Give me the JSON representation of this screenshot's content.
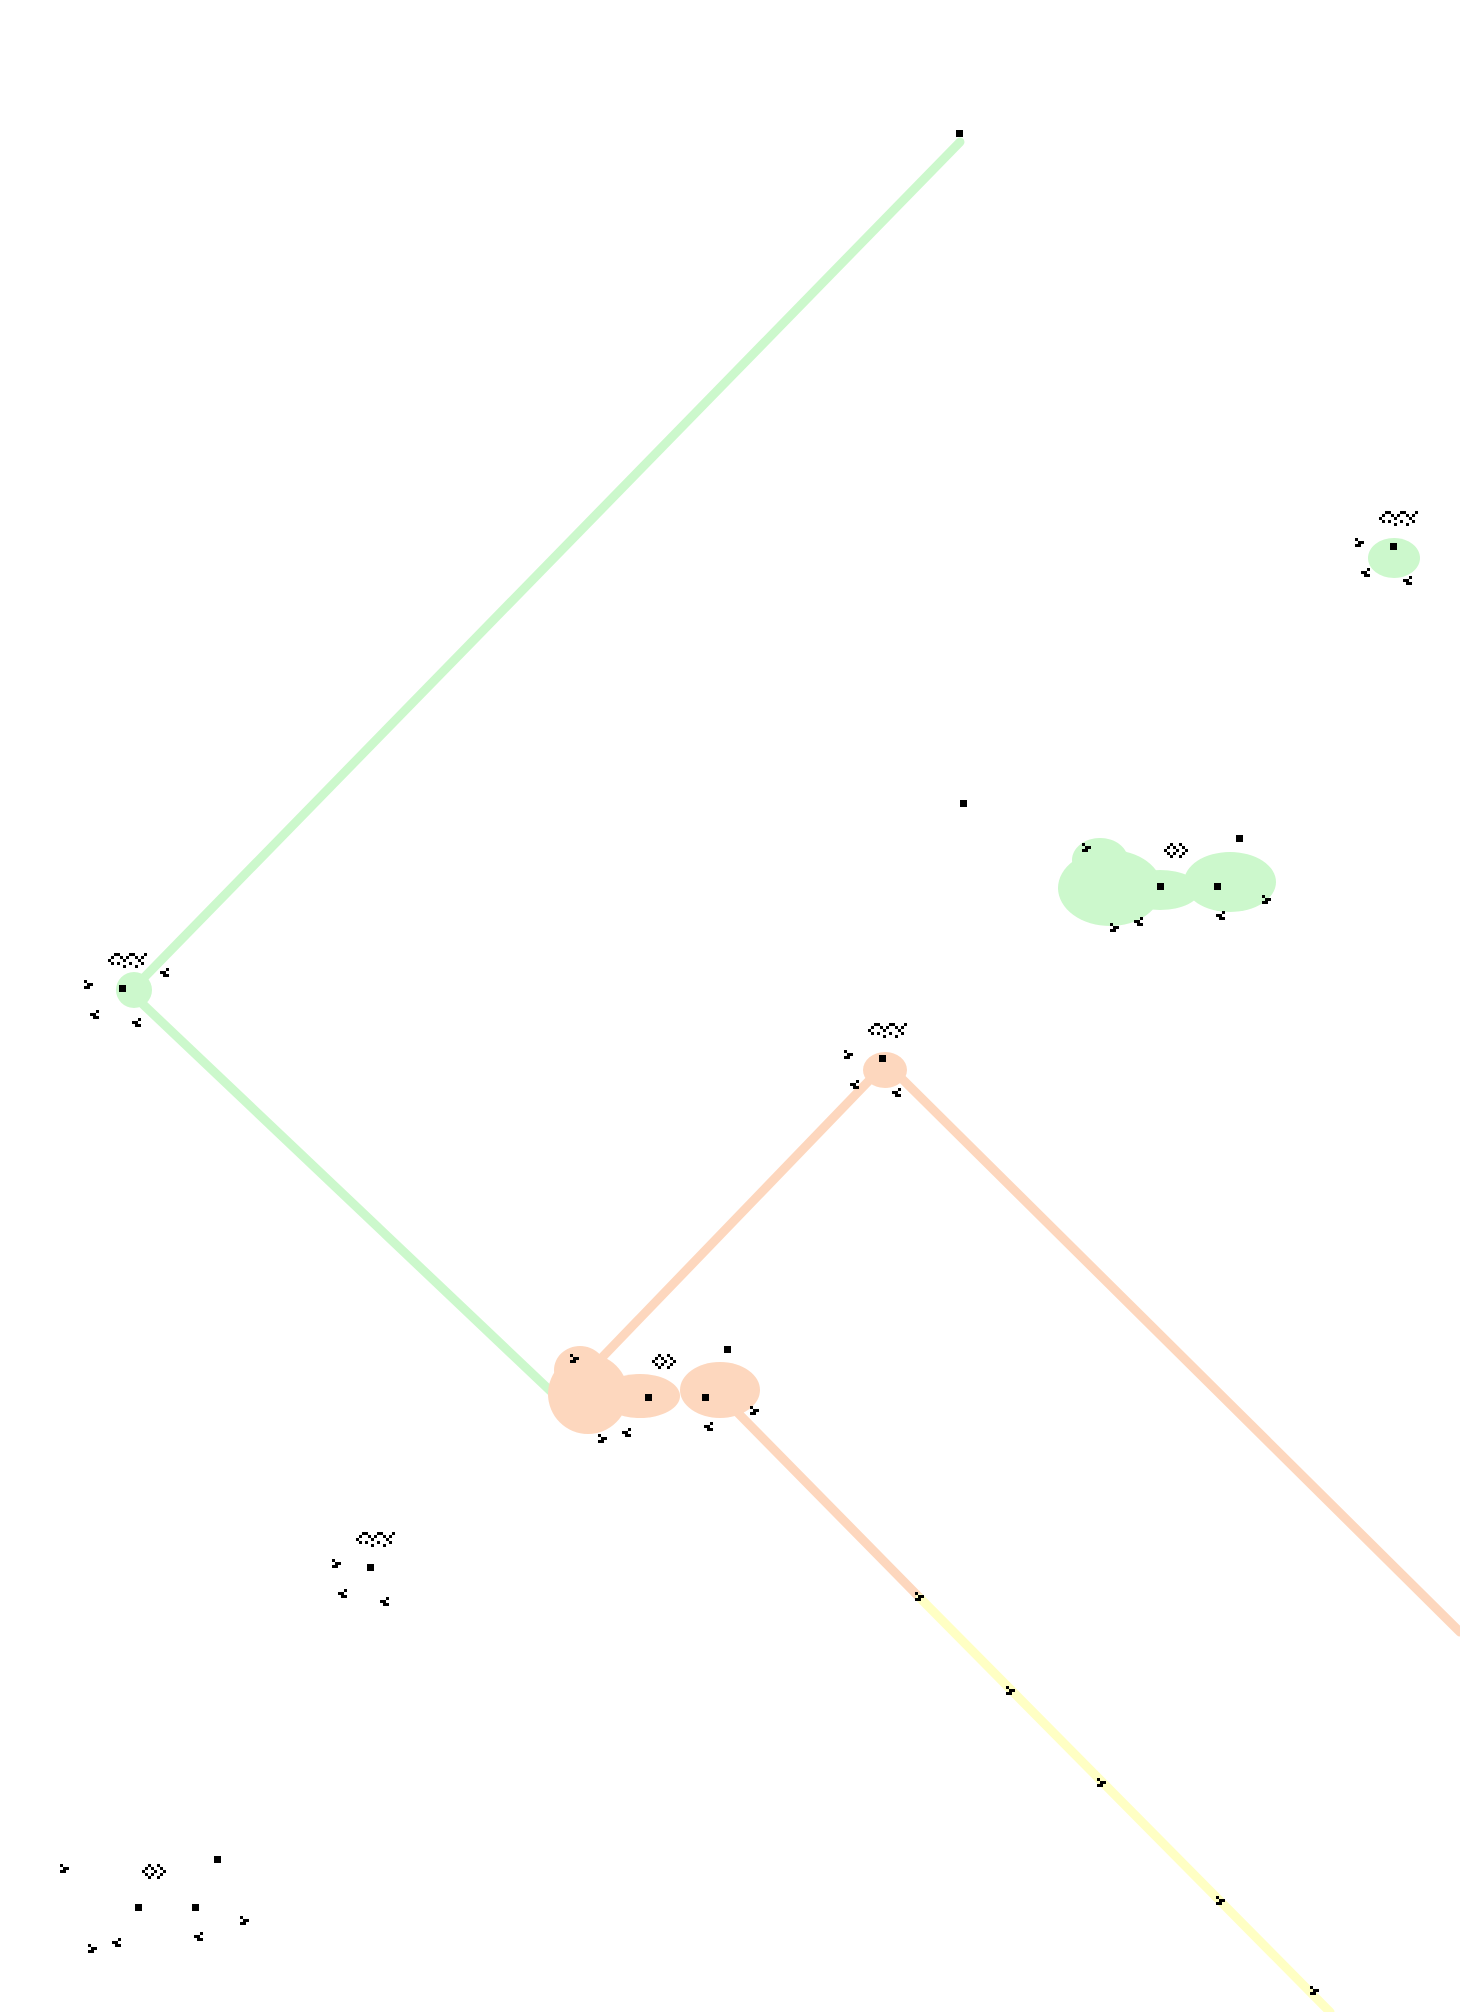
{
  "board": {
    "background": "#ffffff",
    "cell_color": "#000000",
    "trail_colors": {
      "green": "#ccf8cc",
      "orange": "#fdd7be",
      "yellow": "#ffffc4"
    }
  },
  "patterns": [
    {
      "kind": "lone-cell",
      "trail": "green"
    },
    {
      "kind": "breeder",
      "trail": "green"
    },
    {
      "kind": "breeder",
      "trail": "green"
    },
    {
      "kind": "lone-cell",
      "trail": "none"
    },
    {
      "kind": "puffer-cluster",
      "trail": "green"
    },
    {
      "kind": "breeder",
      "trail": "orange"
    },
    {
      "kind": "puffer-cluster",
      "trail": "orange"
    },
    {
      "kind": "breeder",
      "trail": "none"
    },
    {
      "kind": "puffer-cluster",
      "trail": "none"
    },
    {
      "kind": "glider",
      "trail": "yellow"
    },
    {
      "kind": "glider",
      "trail": "yellow"
    },
    {
      "kind": "glider",
      "trail": "yellow"
    },
    {
      "kind": "glider",
      "trail": "yellow"
    },
    {
      "kind": "glider",
      "trail": "yellow"
    }
  ]
}
